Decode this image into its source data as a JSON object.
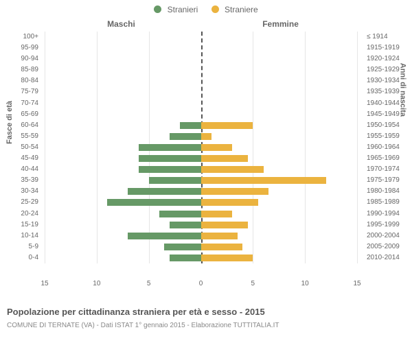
{
  "legend": {
    "male": {
      "label": "Stranieri",
      "color": "#669966"
    },
    "female": {
      "label": "Straniere",
      "color": "#ebb33f"
    }
  },
  "headers": {
    "left": "Maschi",
    "right": "Femmine"
  },
  "axis_titles": {
    "left": "Fasce di età",
    "right": "Anni di nascita"
  },
  "x_ticks": [
    15,
    10,
    5,
    0,
    5,
    10,
    15
  ],
  "x_max": 15,
  "grid_color": "#e5e5e5",
  "center_line_color": "#555555",
  "background_color": "#ffffff",
  "label_color": "#666666",
  "label_fontsize": 10,
  "rows": [
    {
      "age": "100+",
      "birth": "≤ 1914",
      "m": 0,
      "f": 0
    },
    {
      "age": "95-99",
      "birth": "1915-1919",
      "m": 0,
      "f": 0
    },
    {
      "age": "90-94",
      "birth": "1920-1924",
      "m": 0,
      "f": 0
    },
    {
      "age": "85-89",
      "birth": "1925-1929",
      "m": 0,
      "f": 0
    },
    {
      "age": "80-84",
      "birth": "1930-1934",
      "m": 0,
      "f": 0
    },
    {
      "age": "75-79",
      "birth": "1935-1939",
      "m": 0,
      "f": 0
    },
    {
      "age": "70-74",
      "birth": "1940-1944",
      "m": 0,
      "f": 0
    },
    {
      "age": "65-69",
      "birth": "1945-1949",
      "m": 0,
      "f": 0
    },
    {
      "age": "60-64",
      "birth": "1950-1954",
      "m": 2,
      "f": 5
    },
    {
      "age": "55-59",
      "birth": "1955-1959",
      "m": 3,
      "f": 1
    },
    {
      "age": "50-54",
      "birth": "1960-1964",
      "m": 6,
      "f": 3
    },
    {
      "age": "45-49",
      "birth": "1965-1969",
      "m": 6,
      "f": 4.5
    },
    {
      "age": "40-44",
      "birth": "1970-1974",
      "m": 6,
      "f": 6
    },
    {
      "age": "35-39",
      "birth": "1975-1979",
      "m": 5,
      "f": 12
    },
    {
      "age": "30-34",
      "birth": "1980-1984",
      "m": 7,
      "f": 6.5
    },
    {
      "age": "25-29",
      "birth": "1985-1989",
      "m": 9,
      "f": 5.5
    },
    {
      "age": "20-24",
      "birth": "1990-1994",
      "m": 4,
      "f": 3
    },
    {
      "age": "15-19",
      "birth": "1995-1999",
      "m": 3,
      "f": 4.5
    },
    {
      "age": "10-14",
      "birth": "2000-2004",
      "m": 7,
      "f": 3.5
    },
    {
      "age": "5-9",
      "birth": "2005-2009",
      "m": 3.5,
      "f": 4
    },
    {
      "age": "0-4",
      "birth": "2010-2014",
      "m": 3,
      "f": 5
    }
  ],
  "footer": {
    "title": "Popolazione per cittadinanza straniera per età e sesso - 2015",
    "subtitle": "COMUNE DI TERNATE (VA) - Dati ISTAT 1° gennaio 2015 - Elaborazione TUTTITALIA.IT"
  }
}
